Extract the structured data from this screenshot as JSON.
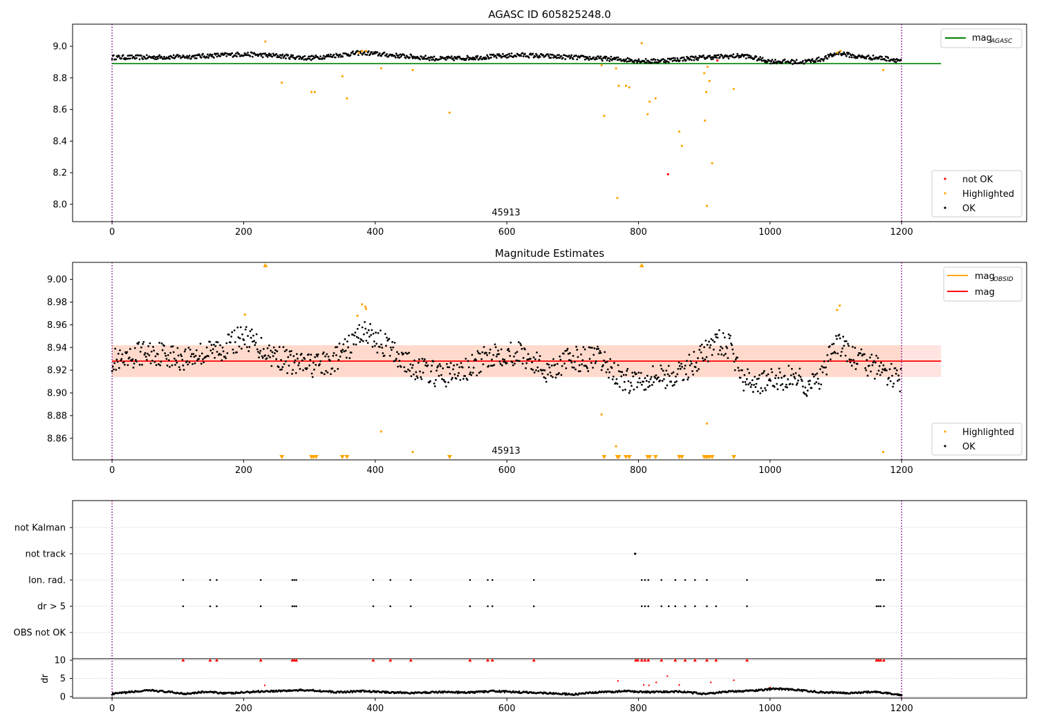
{
  "figure": {
    "panel1_title": "AGASC ID 605825248.0",
    "panel2_title": "Magnitude Estimates",
    "obsid_label": "45913",
    "xlim": [
      -60,
      1390
    ],
    "xticks": [
      0,
      200,
      400,
      600,
      800,
      1000,
      1200
    ],
    "vlines": [
      0,
      1200
    ]
  },
  "colors": {
    "ok": "#000000",
    "highlighted": "#ffa500",
    "not_ok": "#ff0000",
    "mag_agasc_line": "#008000",
    "mag_line": "#ff0000",
    "mag_obsid_line": "#ffa500",
    "band": "#ffdacc",
    "band_outer": "#ffe4e1",
    "vline": "#800080",
    "grid": "#b0b0b0"
  },
  "chart_data": [
    {
      "type": "scatter",
      "panel": "agasc",
      "ylim": [
        7.89,
        9.14
      ],
      "yticks": [
        "9.0",
        "8.8",
        "8.6",
        "8.4",
        "8.2",
        "8.0"
      ],
      "ytick_values": [
        9.0,
        8.8,
        8.6,
        8.4,
        8.2,
        8.0
      ],
      "mag_agasc": 8.89,
      "legend_line": {
        "label": "mag",
        "sub": "AGASC"
      },
      "legend_markers": [
        "not OK",
        "Highlighted",
        "OK"
      ],
      "ok_trend": [
        [
          0,
          8.93
        ],
        [
          60,
          8.93
        ],
        [
          120,
          8.935
        ],
        [
          200,
          8.95
        ],
        [
          250,
          8.94
        ],
        [
          300,
          8.925
        ],
        [
          380,
          8.96
        ],
        [
          420,
          8.945
        ],
        [
          500,
          8.92
        ],
        [
          560,
          8.93
        ],
        [
          620,
          8.945
        ],
        [
          700,
          8.93
        ],
        [
          760,
          8.92
        ],
        [
          820,
          8.905
        ],
        [
          900,
          8.93
        ],
        [
          960,
          8.94
        ],
        [
          1000,
          8.905
        ],
        [
          1050,
          8.9
        ],
        [
          1080,
          8.92
        ],
        [
          1105,
          8.96
        ],
        [
          1130,
          8.935
        ],
        [
          1170,
          8.925
        ],
        [
          1200,
          8.91
        ]
      ],
      "highlighted_points": [
        [
          233,
          9.03
        ],
        [
          258,
          8.77
        ],
        [
          303,
          8.71
        ],
        [
          308,
          8.71
        ],
        [
          350,
          8.81
        ],
        [
          357,
          8.67
        ],
        [
          375,
          8.96
        ],
        [
          380,
          8.97
        ],
        [
          386,
          8.97
        ],
        [
          409,
          8.86
        ],
        [
          457,
          8.85
        ],
        [
          513,
          8.58
        ],
        [
          744,
          8.88
        ],
        [
          748,
          8.56
        ],
        [
          766,
          8.86
        ],
        [
          768,
          8.04
        ],
        [
          770,
          8.75
        ],
        [
          781,
          8.75
        ],
        [
          786,
          8.74
        ],
        [
          805,
          9.02
        ],
        [
          814,
          8.57
        ],
        [
          817,
          8.65
        ],
        [
          826,
          8.67
        ],
        [
          862,
          8.46
        ],
        [
          866,
          8.37
        ],
        [
          900,
          8.83
        ],
        [
          901,
          8.53
        ],
        [
          903,
          8.71
        ],
        [
          904,
          7.99
        ],
        [
          905,
          8.87
        ],
        [
          908,
          8.78
        ],
        [
          912,
          8.26
        ],
        [
          945,
          8.73
        ],
        [
          1102,
          8.96
        ],
        [
          1107,
          8.97
        ],
        [
          1172,
          8.85
        ]
      ],
      "not_ok_points": [
        [
          845,
          8.19
        ],
        [
          920,
          8.91
        ]
      ]
    },
    {
      "type": "scatter",
      "panel": "magnitude_estimates",
      "ylim": [
        8.841,
        9.015
      ],
      "yticks": [
        "9.00",
        "8.98",
        "8.96",
        "8.94",
        "8.92",
        "8.90",
        "8.88",
        "8.86"
      ],
      "ytick_values": [
        9.0,
        8.98,
        8.96,
        8.94,
        8.92,
        8.9,
        8.88,
        8.86
      ],
      "mag": 8.928,
      "band": [
        8.914,
        8.942
      ],
      "legend_lines": [
        {
          "label": "mag",
          "sub": "OBSID",
          "color": "#ffa500"
        },
        {
          "label": "mag",
          "sub": "",
          "color": "#ff0000"
        }
      ],
      "legend_markers": [
        "Highlighted",
        "OK"
      ],
      "ok_trend": [
        [
          0,
          8.93
        ],
        [
          20,
          8.925
        ],
        [
          40,
          8.935
        ],
        [
          80,
          8.935
        ],
        [
          100,
          8.93
        ],
        [
          140,
          8.935
        ],
        [
          170,
          8.94
        ],
        [
          200,
          8.95
        ],
        [
          240,
          8.935
        ],
        [
          280,
          8.925
        ],
        [
          330,
          8.925
        ],
        [
          360,
          8.94
        ],
        [
          380,
          8.955
        ],
        [
          420,
          8.94
        ],
        [
          450,
          8.925
        ],
        [
          500,
          8.915
        ],
        [
          540,
          8.92
        ],
        [
          580,
          8.935
        ],
        [
          620,
          8.935
        ],
        [
          660,
          8.92
        ],
        [
          700,
          8.93
        ],
        [
          740,
          8.93
        ],
        [
          780,
          8.91
        ],
        [
          820,
          8.915
        ],
        [
          860,
          8.915
        ],
        [
          900,
          8.935
        ],
        [
          920,
          8.945
        ],
        [
          940,
          8.94
        ],
        [
          960,
          8.91
        ],
        [
          1000,
          8.91
        ],
        [
          1040,
          8.915
        ],
        [
          1060,
          8.905
        ],
        [
          1080,
          8.915
        ],
        [
          1100,
          8.945
        ],
        [
          1130,
          8.93
        ],
        [
          1170,
          8.92
        ],
        [
          1200,
          8.91
        ]
      ],
      "highlighted_points": [
        [
          202,
          8.969
        ],
        [
          233,
          9.012
        ],
        [
          373,
          8.968
        ],
        [
          380,
          8.978
        ],
        [
          385,
          8.976
        ],
        [
          386,
          8.974
        ],
        [
          409,
          8.866
        ],
        [
          457,
          8.848
        ],
        [
          744,
          8.881
        ],
        [
          766,
          8.853
        ],
        [
          805,
          9.012
        ],
        [
          904,
          8.873
        ],
        [
          1102,
          8.973
        ],
        [
          1106,
          8.977
        ],
        [
          1172,
          8.848
        ]
      ],
      "down_triangles_x": [
        258,
        303,
        306,
        310,
        350,
        357,
        513,
        748,
        768,
        770,
        781,
        786,
        814,
        817,
        826,
        862,
        866,
        900,
        903,
        905,
        908,
        912,
        945
      ]
    },
    {
      "type": "scatter",
      "panel": "flags",
      "categories": [
        "not Kalman",
        "not track",
        "Ion. rad.",
        "dr > 5",
        "OBS not OK"
      ],
      "not_track_x": [
        795
      ],
      "ion_rad_x": [
        108,
        149,
        159,
        226,
        274,
        277,
        280,
        397,
        423,
        454,
        544,
        571,
        578,
        641,
        805,
        810,
        815,
        835,
        856,
        871,
        886,
        904,
        965,
        1162,
        1165,
        1168,
        1173
      ],
      "dr5_x": [
        108,
        149,
        159,
        226,
        274,
        277,
        280,
        397,
        423,
        454,
        544,
        571,
        578,
        641,
        805,
        810,
        815,
        835,
        846,
        856,
        871,
        886,
        904,
        918,
        965,
        1162,
        1165,
        1168,
        1173
      ]
    },
    {
      "type": "scatter",
      "panel": "dr",
      "ylabel": "dr",
      "ylim": [
        -0.4,
        10.4
      ],
      "yticks": [
        "10",
        "5",
        "0"
      ],
      "ytick_values": [
        10,
        5,
        0
      ],
      "red_triangles_x": [
        108,
        149,
        159,
        226,
        274,
        277,
        280,
        397,
        423,
        454,
        544,
        571,
        578,
        641,
        796,
        799,
        805,
        810,
        815,
        835,
        856,
        871,
        886,
        904,
        918,
        965,
        1162,
        1165,
        1168,
        1173
      ],
      "red_points": [
        [
          232,
          3.1
        ],
        [
          769,
          4.3
        ],
        [
          808,
          3.2
        ],
        [
          816,
          3.1
        ],
        [
          827,
          3.9
        ],
        [
          844,
          5.6
        ],
        [
          862,
          3.2
        ],
        [
          910,
          3.9
        ],
        [
          945,
          4.5
        ],
        [
          1000,
          2.5
        ]
      ],
      "ok_trend": [
        [
          0,
          0.7
        ],
        [
          30,
          1.3
        ],
        [
          60,
          1.7
        ],
        [
          90,
          1.2
        ],
        [
          110,
          0.8
        ],
        [
          140,
          1.3
        ],
        [
          180,
          0.9
        ],
        [
          220,
          1.4
        ],
        [
          260,
          1.6
        ],
        [
          300,
          1.8
        ],
        [
          340,
          1.2
        ],
        [
          380,
          1.5
        ],
        [
          420,
          1.2
        ],
        [
          460,
          1.0
        ],
        [
          500,
          1.3
        ],
        [
          540,
          1.1
        ],
        [
          580,
          1.5
        ],
        [
          620,
          1.2
        ],
        [
          660,
          1.0
        ],
        [
          700,
          0.6
        ],
        [
          740,
          1.2
        ],
        [
          780,
          1.5
        ],
        [
          820,
          1.2
        ],
        [
          860,
          1.4
        ],
        [
          900,
          0.8
        ],
        [
          940,
          1.4
        ],
        [
          980,
          1.7
        ],
        [
          1010,
          2.2
        ],
        [
          1040,
          1.8
        ],
        [
          1080,
          1.2
        ],
        [
          1120,
          1.0
        ],
        [
          1160,
          1.3
        ],
        [
          1200,
          0.5
        ]
      ]
    }
  ]
}
